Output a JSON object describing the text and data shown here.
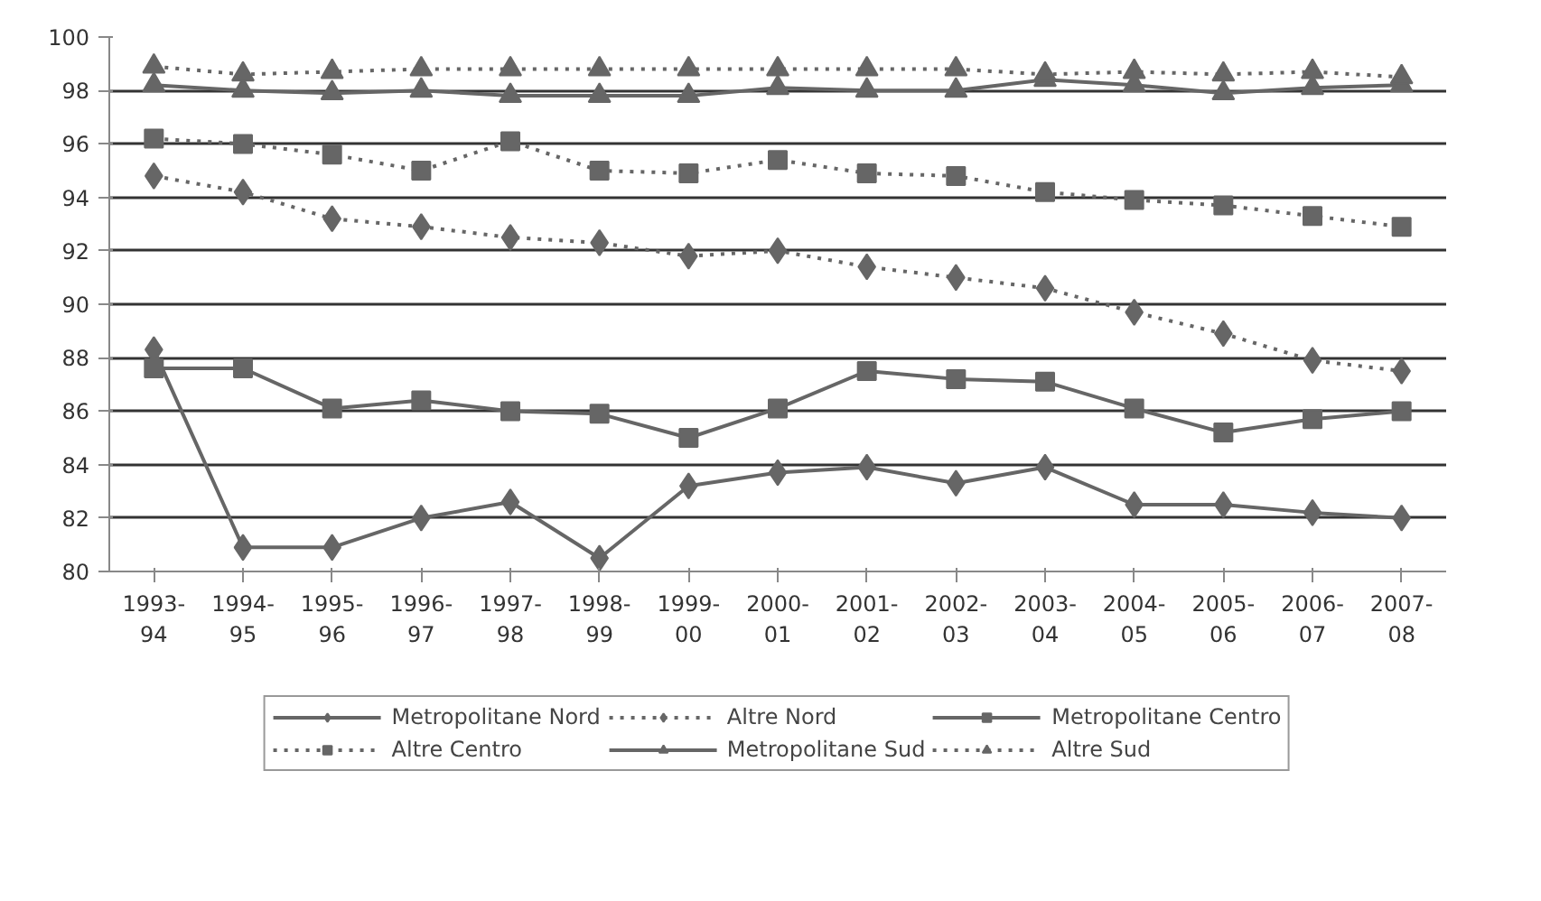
{
  "chart_data": {
    "type": "line",
    "categories": [
      "1993-\n94",
      "1994-\n95",
      "1995-\n96",
      "1996-\n97",
      "1997-\n98",
      "1998-\n99",
      "1999-\n00",
      "2000-\n01",
      "2001-\n02",
      "2002-\n03",
      "2003-\n04",
      "2004-\n05",
      "2005-\n06",
      "2006-\n07",
      "2007-\n08"
    ],
    "ylim": [
      80,
      100
    ],
    "yticks": [
      80,
      82,
      84,
      86,
      88,
      90,
      92,
      94,
      96,
      98,
      100
    ],
    "grid": "y",
    "legend": "bottom",
    "series": [
      {
        "name": "Metropolitane Nord",
        "color": "#666666",
        "marker": "diamond",
        "line_style": "solid",
        "values": [
          88.3,
          80.9,
          80.9,
          82.0,
          82.6,
          80.5,
          83.2,
          83.7,
          83.9,
          83.3,
          83.9,
          82.5,
          82.5,
          82.2,
          82.0
        ]
      },
      {
        "name": "Altre Nord",
        "color": "#666666",
        "marker": "diamond",
        "line_style": "dotted",
        "values": [
          94.8,
          94.2,
          93.2,
          92.9,
          92.5,
          92.3,
          91.8,
          92.0,
          91.4,
          91.0,
          90.6,
          89.7,
          88.9,
          87.9,
          87.5
        ]
      },
      {
        "name": "Metropolitane Centro",
        "color": "#666666",
        "marker": "square",
        "line_style": "solid",
        "values": [
          87.6,
          87.6,
          86.1,
          86.4,
          86.0,
          85.9,
          85.0,
          86.1,
          87.5,
          87.2,
          87.1,
          86.1,
          85.2,
          85.7,
          86.0
        ]
      },
      {
        "name": "Altre Centro",
        "color": "#666666",
        "marker": "square",
        "line_style": "dotted",
        "values": [
          96.2,
          96.0,
          95.6,
          95.0,
          96.1,
          95.0,
          94.9,
          95.4,
          94.9,
          94.8,
          94.2,
          93.9,
          93.7,
          93.3,
          92.9
        ]
      },
      {
        "name": "Metropolitane Sud",
        "color": "#666666",
        "marker": "triangle",
        "line_style": "solid",
        "values": [
          98.2,
          98.0,
          97.9,
          98.0,
          97.8,
          97.8,
          97.8,
          98.1,
          98.0,
          98.0,
          98.4,
          98.2,
          97.9,
          98.1,
          98.2
        ]
      },
      {
        "name": "Altre Sud",
        "color": "#666666",
        "marker": "triangle",
        "line_style": "dotted",
        "values": [
          98.9,
          98.6,
          98.7,
          98.8,
          98.8,
          98.8,
          98.8,
          98.8,
          98.8,
          98.8,
          98.6,
          98.7,
          98.6,
          98.7,
          98.5
        ]
      }
    ]
  }
}
